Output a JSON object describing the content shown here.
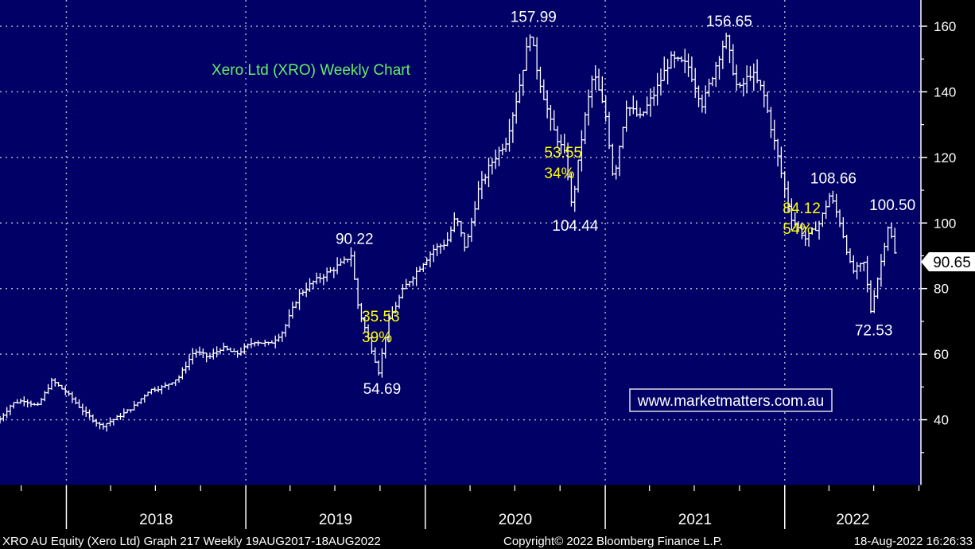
{
  "chart_data": {
    "type": "ohlc",
    "title": "Xero Ltd (XRO) Weekly Chart",
    "frequency": "Weekly",
    "ylim": [
      20,
      168
    ],
    "y_ticks": [
      40,
      60,
      80,
      100,
      120,
      140,
      160
    ],
    "x_tick_labels": [
      "2018",
      "2019",
      "2020",
      "2021",
      "2022"
    ],
    "year_boundaries": [
      "2018-01-01",
      "2019-01-01",
      "2020-01-01",
      "2021-01-01",
      "2022-01-01"
    ],
    "date_range": [
      "2017-08-19",
      "2022-08-18"
    ],
    "grid": true,
    "last_price": {
      "label": "90.65",
      "value": 90.65
    },
    "series": [
      {
        "name": "XRO AU Equity",
        "points": [
          {
            "x": "2017-08-19",
            "y": 39
          },
          {
            "x": "2017-09-20",
            "y": 45
          },
          {
            "x": "2017-10-15",
            "y": 46
          },
          {
            "x": "2017-11-10",
            "y": 44
          },
          {
            "x": "2017-12-10",
            "y": 52
          },
          {
            "x": "2018-01-10",
            "y": 48
          },
          {
            "x": "2018-02-15",
            "y": 42
          },
          {
            "x": "2018-03-20",
            "y": 38
          },
          {
            "x": "2018-04-25",
            "y": 41
          },
          {
            "x": "2018-05-25",
            "y": 44
          },
          {
            "x": "2018-06-25",
            "y": 49
          },
          {
            "x": "2018-07-25",
            "y": 50
          },
          {
            "x": "2018-08-25",
            "y": 53
          },
          {
            "x": "2018-09-25",
            "y": 61
          },
          {
            "x": "2018-10-25",
            "y": 59
          },
          {
            "x": "2018-11-20",
            "y": 62
          },
          {
            "x": "2018-12-20",
            "y": 60
          },
          {
            "x": "2019-01-25",
            "y": 64
          },
          {
            "x": "2019-02-25",
            "y": 63
          },
          {
            "x": "2019-03-25",
            "y": 67
          },
          {
            "x": "2019-04-25",
            "y": 78
          },
          {
            "x": "2019-05-25",
            "y": 82
          },
          {
            "x": "2019-06-25",
            "y": 85
          },
          {
            "x": "2019-07-25",
            "y": 88
          },
          {
            "x": "2019-08-10",
            "y": 90.22
          },
          {
            "x": "2019-08-25",
            "y": 74
          },
          {
            "x": "2019-09-20",
            "y": 62
          },
          {
            "x": "2019-10-05",
            "y": 54.69
          },
          {
            "x": "2019-10-25",
            "y": 70
          },
          {
            "x": "2019-11-25",
            "y": 80
          },
          {
            "x": "2019-12-20",
            "y": 85
          },
          {
            "x": "2020-01-25",
            "y": 92
          },
          {
            "x": "2020-02-20",
            "y": 94
          },
          {
            "x": "2020-03-10",
            "y": 102
          },
          {
            "x": "2020-03-30",
            "y": 92
          },
          {
            "x": "2020-04-25",
            "y": 110
          },
          {
            "x": "2020-05-20",
            "y": 118
          },
          {
            "x": "2020-06-20",
            "y": 125
          },
          {
            "x": "2020-07-15",
            "y": 140
          },
          {
            "x": "2020-08-08",
            "y": 157.99
          },
          {
            "x": "2020-08-25",
            "y": 145
          },
          {
            "x": "2020-09-20",
            "y": 130
          },
          {
            "x": "2020-10-20",
            "y": 120
          },
          {
            "x": "2020-11-01",
            "y": 104.44
          },
          {
            "x": "2020-11-25",
            "y": 130
          },
          {
            "x": "2020-12-15",
            "y": 146
          },
          {
            "x": "2021-01-10",
            "y": 132
          },
          {
            "x": "2021-01-25",
            "y": 113
          },
          {
            "x": "2021-02-20",
            "y": 136
          },
          {
            "x": "2021-03-20",
            "y": 132
          },
          {
            "x": "2021-04-20",
            "y": 140
          },
          {
            "x": "2021-05-20",
            "y": 150
          },
          {
            "x": "2021-06-25",
            "y": 148
          },
          {
            "x": "2021-07-25",
            "y": 136
          },
          {
            "x": "2021-08-25",
            "y": 150
          },
          {
            "x": "2021-09-10",
            "y": 156.65
          },
          {
            "x": "2021-10-05",
            "y": 140
          },
          {
            "x": "2021-11-01",
            "y": 146
          },
          {
            "x": "2021-11-25",
            "y": 140
          },
          {
            "x": "2021-12-25",
            "y": 120
          },
          {
            "x": "2022-01-20",
            "y": 102
          },
          {
            "x": "2022-02-20",
            "y": 95
          },
          {
            "x": "2022-03-20",
            "y": 100
          },
          {
            "x": "2022-04-10",
            "y": 108.66
          },
          {
            "x": "2022-05-01",
            "y": 100
          },
          {
            "x": "2022-05-25",
            "y": 85
          },
          {
            "x": "2022-06-20",
            "y": 88
          },
          {
            "x": "2022-07-01",
            "y": 72.53
          },
          {
            "x": "2022-07-20",
            "y": 86
          },
          {
            "x": "2022-08-08",
            "y": 100.5
          },
          {
            "x": "2022-08-18",
            "y": 90.65
          }
        ]
      }
    ],
    "annotations": [
      {
        "text": "90.22",
        "x": "2019-08-10",
        "y": 90.22,
        "position": "above",
        "color": "#ffffff"
      },
      {
        "text": "54.69",
        "x": "2019-10-05",
        "y": 54.69,
        "position": "below",
        "color": "#ffffff"
      },
      {
        "text": "157.99",
        "x": "2020-08-08",
        "y": 157.99,
        "position": "above",
        "color": "#ffffff"
      },
      {
        "text": "104.44",
        "x": "2020-11-01",
        "y": 104.44,
        "position": "below",
        "color": "#ffffff"
      },
      {
        "text": "156.65",
        "x": "2021-09-10",
        "y": 156.65,
        "position": "above",
        "color": "#ffffff"
      },
      {
        "text": "108.66",
        "x": "2022-04-10",
        "y": 108.66,
        "position": "above",
        "color": "#ffffff"
      },
      {
        "text": "72.53",
        "x": "2022-07-01",
        "y": 72.53,
        "position": "below",
        "color": "#ffffff"
      },
      {
        "text": "100.50",
        "x": "2022-08-08",
        "y": 100.5,
        "position": "above",
        "color": "#ffffff"
      }
    ],
    "drawdowns": [
      {
        "value": "35.53",
        "percent": "39%",
        "x": "2019-08-25",
        "y": 70
      },
      {
        "value": "53.55",
        "percent": "34%",
        "x": "2020-08-30",
        "y": 120
      },
      {
        "value": "84.12",
        "percent": "54%",
        "x": "2021-12-28",
        "y": 103
      }
    ],
    "watermark": "www.marketmatters.com.au"
  },
  "footer": {
    "left": "XRO AU Equity (Xero Ltd) Graph 217  Weekly 19AUG2017-18AUG2022",
    "center": "Copyright© 2022 Bloomberg Finance L.P.",
    "right": "18-Aug-2022 16:26:33"
  },
  "colors": {
    "background": "#000066",
    "frame": "#000000",
    "grid": "#b0b0c8",
    "price": "#ffffff",
    "title": "#66ee66",
    "drawdown_text": "#ffff00",
    "last_price_box": "#ffffff",
    "last_price_text": "#000000",
    "watermark_text": "#ffffff",
    "watermark_border": "#dddddd"
  }
}
